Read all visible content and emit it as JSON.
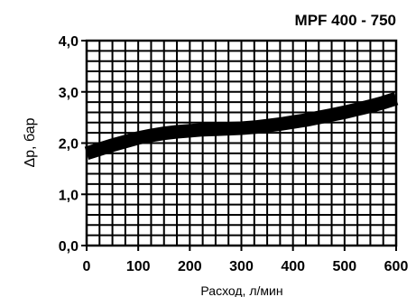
{
  "chart_data": {
    "type": "line",
    "title": "MPF 400 - 750",
    "xlabel": "Расход, л/мин",
    "ylabel": "Δp, бар",
    "xlim": [
      0,
      600
    ],
    "ylim": [
      0,
      4
    ],
    "x_ticks": [
      "0",
      "100",
      "200",
      "300",
      "400",
      "500",
      "600"
    ],
    "y_ticks": [
      "0,0",
      "1,0",
      "2,0",
      "3,0",
      "4,0"
    ],
    "grid": true,
    "series": [
      {
        "x": [
          0,
          25,
          50,
          75,
          100,
          125,
          150,
          175,
          200,
          225,
          250,
          275,
          300,
          325,
          350,
          375,
          400,
          425,
          450,
          475,
          500,
          525,
          550,
          575,
          600
        ],
        "y": [
          1.8,
          1.88,
          1.96,
          2.03,
          2.1,
          2.15,
          2.19,
          2.22,
          2.24,
          2.26,
          2.27,
          2.28,
          2.29,
          2.31,
          2.34,
          2.37,
          2.41,
          2.45,
          2.5,
          2.55,
          2.6,
          2.66,
          2.72,
          2.79,
          2.87
        ]
      }
    ],
    "colors": {
      "line": "#000000",
      "grid": "#000000"
    }
  }
}
